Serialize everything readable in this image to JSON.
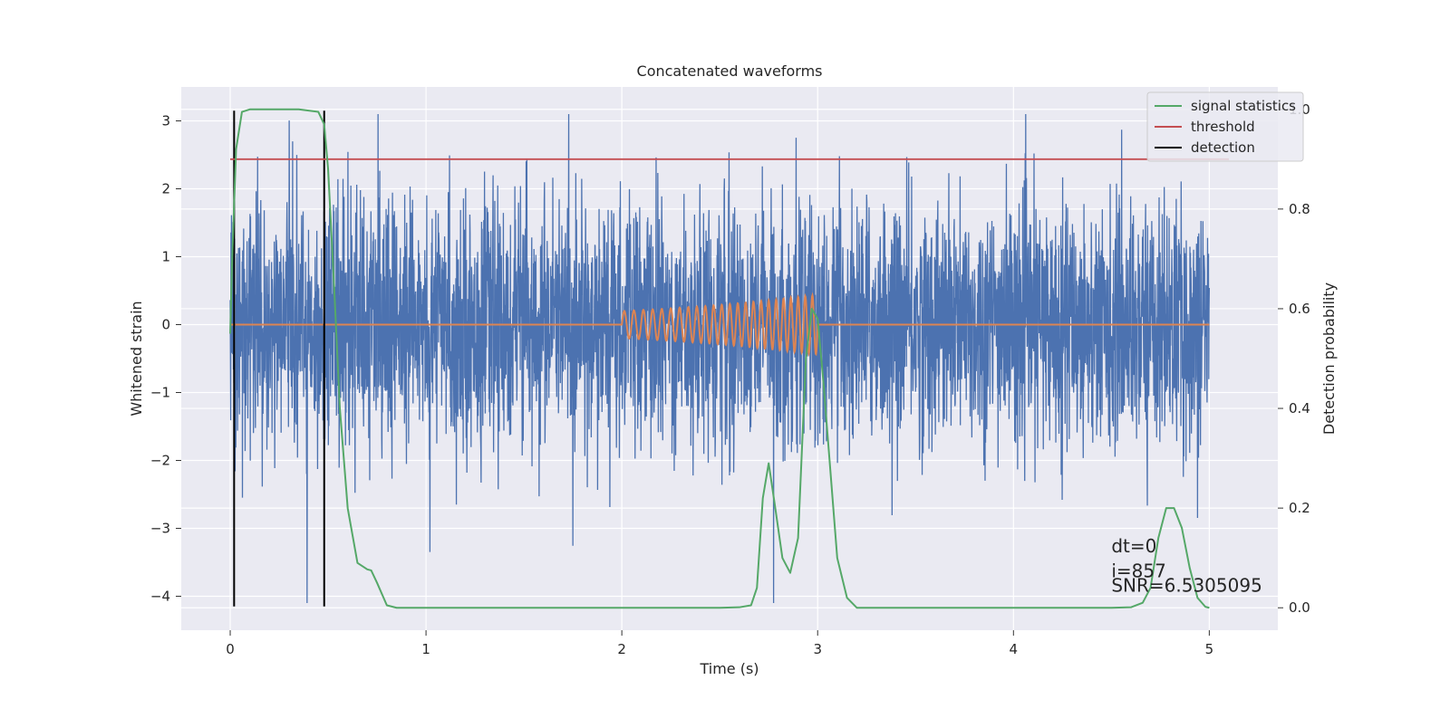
{
  "chart_data": {
    "type": "line",
    "title": "Concatenated waveforms",
    "xlabel": "Time (s)",
    "ylabel": "Whitened strain",
    "y2label": "Detection probability",
    "xlim": [
      -0.25,
      5.35
    ],
    "ylim": [
      -4.5,
      3.5
    ],
    "y2lim": [
      -0.045,
      1.045
    ],
    "xticks": [
      0,
      1,
      2,
      3,
      4,
      5
    ],
    "xtick_labels": [
      "0",
      "1",
      "2",
      "3",
      "4",
      "5"
    ],
    "yticks": [
      3,
      2,
      1,
      0,
      -1,
      -2,
      -3,
      -4
    ],
    "ytick_labels": [
      "3",
      "2",
      "1",
      "0",
      "−1",
      "−2",
      "−3",
      "−4"
    ],
    "y2ticks": [
      1.0,
      0.8,
      0.6,
      0.4,
      0.2,
      0.0
    ],
    "y2tick_labels": [
      "1.0",
      "0.8",
      "0.6",
      "0.4",
      "0.2",
      "0.0"
    ],
    "grid": true,
    "legend_position": "top-right",
    "colors": {
      "plot_background": "#eaeaf2",
      "grid": "#ffffff",
      "strain": "#4c72b0",
      "injection": "#dd8452",
      "signal_statistics": "#55a868",
      "threshold": "#c44e52",
      "detection": "#000000"
    },
    "series": [
      {
        "name": "",
        "role": "whitened_strain",
        "axis": "left",
        "x_range": [
          0,
          5
        ],
        "amplitude_typical": 1.4,
        "amplitude_peak_range": [
          -4.1,
          3.1
        ]
      },
      {
        "name": "",
        "role": "injected_waveform",
        "axis": "left",
        "x": [
          0,
          2,
          2.25,
          2.5,
          2.75,
          3.0,
          3.0,
          5
        ],
        "envelope": [
          0,
          0.2,
          0.24,
          0.29,
          0.36,
          0.44,
          0,
          0
        ]
      },
      {
        "name": "signal statistics",
        "role": "signal_statistics",
        "axis": "right",
        "x": [
          0,
          0.01,
          0.03,
          0.06,
          0.1,
          0.2,
          0.35,
          0.45,
          0.48,
          0.5,
          0.53,
          0.56,
          0.6,
          0.65,
          0.7,
          0.72,
          0.75,
          0.8,
          0.85,
          1.0,
          1.5,
          2.0,
          2.5,
          2.6,
          2.66,
          2.69,
          2.72,
          2.75,
          2.78,
          2.82,
          2.86,
          2.9,
          2.94,
          2.97,
          3.0,
          3.03,
          3.06,
          3.1,
          3.15,
          3.2,
          3.3,
          4.0,
          4.5,
          4.6,
          4.66,
          4.7,
          4.74,
          4.78,
          4.82,
          4.86,
          4.9,
          4.94,
          4.98,
          5.0
        ],
        "y": [
          0.55,
          0.7,
          0.92,
          0.995,
          1.0,
          1.0,
          1.0,
          0.995,
          0.97,
          0.88,
          0.65,
          0.4,
          0.2,
          0.09,
          0.077,
          0.075,
          0.05,
          0.005,
          0.0,
          0.0,
          0.0,
          0.0,
          0.0,
          0.001,
          0.005,
          0.04,
          0.22,
          0.29,
          0.21,
          0.1,
          0.07,
          0.14,
          0.5,
          0.6,
          0.58,
          0.45,
          0.3,
          0.1,
          0.02,
          0.0,
          0.0,
          0.0,
          0.0,
          0.001,
          0.01,
          0.04,
          0.14,
          0.2,
          0.2,
          0.16,
          0.08,
          0.02,
          0.002,
          0.0
        ]
      },
      {
        "name": "threshold",
        "role": "threshold",
        "axis": "right",
        "x": [
          0,
          5.1
        ],
        "y": [
          0.9,
          0.9
        ]
      },
      {
        "name": "detection",
        "role": "detection",
        "axis": "left",
        "x_positions": [
          0.02,
          0.48
        ],
        "y_range": [
          -4.15,
          3.15
        ]
      }
    ],
    "annotations": [
      {
        "text": "dt=0",
        "x": 4.5,
        "y": -3.35
      },
      {
        "text": "i=857",
        "x": 4.5,
        "y": -3.72
      },
      {
        "text": "SNR=6.5305095",
        "x": 4.5,
        "y": -3.93
      }
    ]
  }
}
